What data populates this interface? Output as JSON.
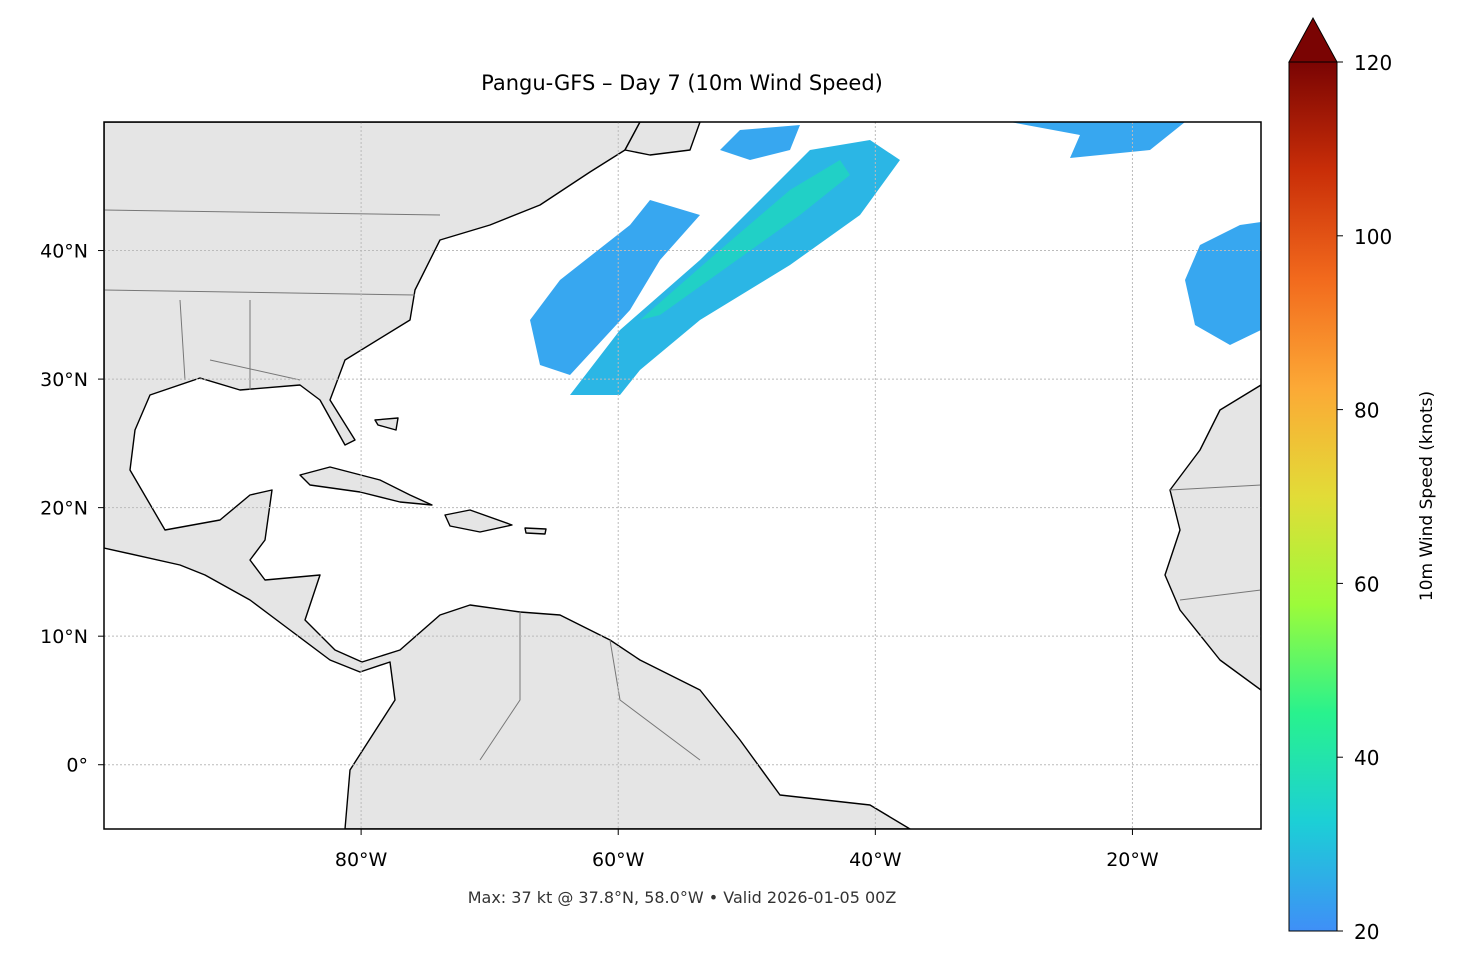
{
  "chart_data": {
    "type": "map",
    "title": "Pangu-GFS – Day 7 (10m Wind Speed)",
    "note": "Max: 37 kt @ 37.8°N, 58.0°W • Valid 2026-01-05 00Z",
    "xlim": [
      -100,
      -10
    ],
    "ylim": [
      -5,
      50
    ],
    "xticks": [
      {
        "value": -80,
        "label": "80°W"
      },
      {
        "value": -60,
        "label": "60°W"
      },
      {
        "value": -40,
        "label": "40°W"
      },
      {
        "value": -20,
        "label": "20°W"
      }
    ],
    "yticks": [
      {
        "value": 0,
        "label": "0°"
      },
      {
        "value": 10,
        "label": "10°N"
      },
      {
        "value": 20,
        "label": "20°N"
      },
      {
        "value": 30,
        "label": "30°N"
      },
      {
        "value": 40,
        "label": "40°N"
      }
    ],
    "grid": true,
    "colorbar": {
      "label": "10m Wind Speed (knots)",
      "lim": [
        20,
        120
      ],
      "ticks": [
        20,
        40,
        60,
        80,
        100,
        120
      ],
      "colors": [
        "#3f8ff7",
        "#1ccfd6",
        "#28f28e",
        "#9cfb3a",
        "#e2dc37",
        "#fca936",
        "#f26a1d",
        "#c92e08",
        "#7a0403"
      ]
    }
  }
}
